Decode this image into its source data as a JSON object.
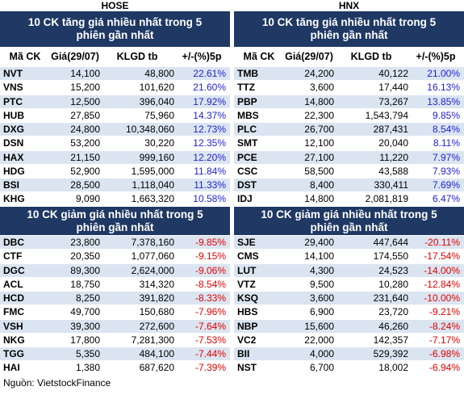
{
  "hose": {
    "title": "HOSE",
    "gainers": {
      "title": "10 CK tăng giá nhiều nhất trong 5 phiên gần nhất",
      "columns": [
        "Mã CK",
        "Giá(29/07)",
        "KLGD tb",
        "+/-(%)5p"
      ],
      "rows": [
        [
          "NVT",
          "14,100",
          "48,800",
          "22.61%"
        ],
        [
          "VNS",
          "15,200",
          "101,620",
          "21.60%"
        ],
        [
          "PTC",
          "12,500",
          "396,040",
          "17.92%"
        ],
        [
          "HUB",
          "27,850",
          "75,960",
          "14.37%"
        ],
        [
          "DXG",
          "24,800",
          "10,348,060",
          "12.73%"
        ],
        [
          "DSN",
          "53,200",
          "30,220",
          "12.35%"
        ],
        [
          "HAX",
          "21,150",
          "999,160",
          "12.20%"
        ],
        [
          "HDG",
          "52,900",
          "1,595,000",
          "11.84%"
        ],
        [
          "BSI",
          "28,500",
          "1,118,040",
          "11.33%"
        ],
        [
          "KHG",
          "9,090",
          "1,663,320",
          "10.58%"
        ]
      ]
    },
    "losers": {
      "title": "10 CK giảm giá nhiều nhất trong 5 phiên gần nhất",
      "rows": [
        [
          "DBC",
          "23,800",
          "7,378,160",
          "-9.85%"
        ],
        [
          "CTF",
          "20,350",
          "1,077,060",
          "-9.15%"
        ],
        [
          "DGC",
          "89,300",
          "2,624,000",
          "-9.06%"
        ],
        [
          "ACL",
          "18,750",
          "314,320",
          "-8.54%"
        ],
        [
          "HCD",
          "8,250",
          "391,820",
          "-8.33%"
        ],
        [
          "FMC",
          "49,700",
          "150,680",
          "-7.96%"
        ],
        [
          "VSH",
          "39,300",
          "272,600",
          "-7.64%"
        ],
        [
          "NKG",
          "17,800",
          "7,281,300",
          "-7.53%"
        ],
        [
          "TGG",
          "5,350",
          "484,100",
          "-7.44%"
        ],
        [
          "HAI",
          "1,380",
          "687,620",
          "-7.39%"
        ]
      ]
    }
  },
  "hnx": {
    "title": "HNX",
    "gainers": {
      "title": "10 CK tăng giá nhiều nhất trong 5 phiên gần nhất",
      "columns": [
        "Mã CK",
        "Giá(29/07)",
        "KLGD tb",
        "+/-(%)5p"
      ],
      "rows": [
        [
          "TMB",
          "24,200",
          "40,122",
          "21.00%"
        ],
        [
          "TTZ",
          "3,600",
          "17,440",
          "16.13%"
        ],
        [
          "PBP",
          "14,800",
          "73,267",
          "13.85%"
        ],
        [
          "MBS",
          "22,300",
          "1,543,794",
          "9.85%"
        ],
        [
          "PLC",
          "26,700",
          "287,431",
          "8.54%"
        ],
        [
          "SMT",
          "12,100",
          "20,040",
          "8.11%"
        ],
        [
          "PCE",
          "27,100",
          "11,220",
          "7.97%"
        ],
        [
          "CSC",
          "58,500",
          "43,588",
          "7.93%"
        ],
        [
          "DST",
          "8,400",
          "330,411",
          "7.69%"
        ],
        [
          "IDJ",
          "14,800",
          "2,081,819",
          "6.47%"
        ]
      ]
    },
    "losers": {
      "title": "10 CK giảm giá nhiều nhất trong 5 phiên gần nhất",
      "rows": [
        [
          "SJE",
          "29,400",
          "447,644",
          "-20.11%"
        ],
        [
          "CMS",
          "14,100",
          "174,550",
          "-17.54%"
        ],
        [
          "LUT",
          "4,300",
          "24,523",
          "-14.00%"
        ],
        [
          "VTZ",
          "9,500",
          "10,280",
          "-12.84%"
        ],
        [
          "KSQ",
          "3,600",
          "231,640",
          "-10.00%"
        ],
        [
          "HBS",
          "6,900",
          "23,720",
          "-9.21%"
        ],
        [
          "NBP",
          "15,600",
          "46,260",
          "-8.24%"
        ],
        [
          "VC2",
          "22,000",
          "142,357",
          "-7.17%"
        ],
        [
          "BII",
          "4,000",
          "529,392",
          "-6.98%"
        ],
        [
          "NST",
          "6,700",
          "18,002",
          "-6.94%"
        ]
      ]
    }
  },
  "source": "Nguồn: VietstockFinance"
}
